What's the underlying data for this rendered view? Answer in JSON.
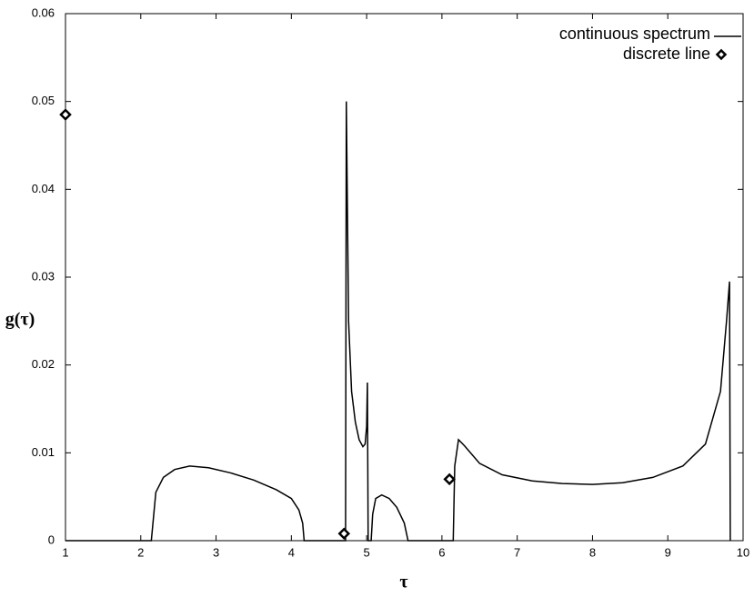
{
  "chart_data": {
    "type": "line",
    "x_label": "τ",
    "y_label": "g(τ)",
    "xlim": [
      1,
      10
    ],
    "ylim": [
      0,
      0.06
    ],
    "xticks": [
      1,
      2,
      3,
      4,
      5,
      6,
      7,
      8,
      9,
      10
    ],
    "yticks": [
      0,
      0.01,
      0.02,
      0.03,
      0.04,
      0.05,
      0.06
    ],
    "legend": "top-right",
    "series": [
      {
        "name": "continuous spectrum",
        "type": "line",
        "color": "#000000",
        "x": [
          1,
          2.14,
          2.2,
          2.3,
          2.45,
          2.65,
          2.9,
          3.2,
          3.5,
          3.8,
          4.0,
          4.1,
          4.15,
          4.17,
          4.72,
          4.73,
          4.76,
          4.8,
          4.85,
          4.9,
          4.95,
          4.98,
          5.0,
          5.01,
          5.02,
          5.06,
          5.08,
          5.12,
          5.2,
          5.3,
          5.4,
          5.5,
          5.55,
          6.15,
          6.17,
          6.22,
          6.3,
          6.5,
          6.8,
          7.2,
          7.6,
          8.0,
          8.4,
          8.8,
          9.2,
          9.5,
          9.7,
          9.78,
          9.82,
          9.83
        ],
        "values": [
          0,
          0,
          0.0055,
          0.0072,
          0.0081,
          0.0085,
          0.0083,
          0.0077,
          0.0069,
          0.0058,
          0.0048,
          0.0035,
          0.002,
          0,
          0,
          0.05,
          0.025,
          0.017,
          0.0135,
          0.0115,
          0.0107,
          0.011,
          0.013,
          0.018,
          0,
          0,
          0.003,
          0.0048,
          0.0052,
          0.0048,
          0.0038,
          0.002,
          0,
          0,
          0.0085,
          0.0115,
          0.0108,
          0.0088,
          0.0075,
          0.0068,
          0.0065,
          0.0064,
          0.0066,
          0.0072,
          0.0085,
          0.011,
          0.017,
          0.025,
          0.0295,
          0
        ]
      },
      {
        "name": "discrete line",
        "type": "scatter",
        "color": "#000000",
        "x": [
          1.0,
          4.7,
          6.1
        ],
        "values": [
          0.0485,
          0.0008,
          0.007
        ]
      }
    ]
  }
}
